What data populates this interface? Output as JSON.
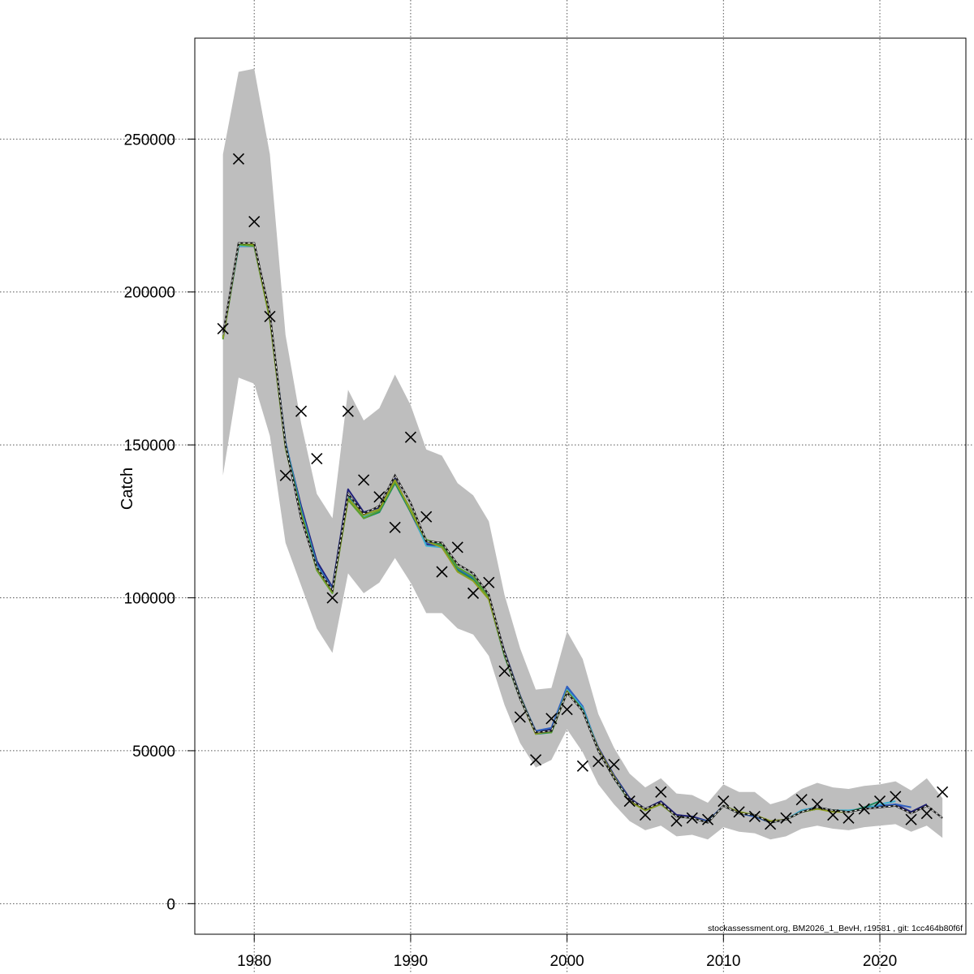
{
  "footer_text": "stockassessment.org, BM2026_1_BevH, r19581 , git: 1cc464b80f6f",
  "colors": {
    "band": "#bebebe",
    "observed_marker": "#000000",
    "estimate_line": "#1a1a1a",
    "retro_peels": [
      "#20207a",
      "#3060c0",
      "#40b0d0",
      "#1a8a60",
      "#5aa030",
      "#90a020"
    ]
  },
  "chart_data": {
    "type": "line",
    "title": "",
    "xlabel": "",
    "ylabel": "Catch",
    "xlim": [
      1976.2,
      2025.5
    ],
    "ylim": [
      -10000,
      283000
    ],
    "grid": true,
    "x_ticks": [
      1980,
      1990,
      2000,
      2010,
      2020
    ],
    "y_ticks": [
      0,
      50000,
      100000,
      150000,
      200000,
      250000
    ],
    "years": [
      1978,
      1979,
      1980,
      1981,
      1982,
      1983,
      1984,
      1985,
      1986,
      1987,
      1988,
      1989,
      1990,
      1991,
      1992,
      1993,
      1994,
      1995,
      1996,
      1997,
      1998,
      1999,
      2000,
      2001,
      2002,
      2003,
      2004,
      2005,
      2006,
      2007,
      2008,
      2009,
      2010,
      2011,
      2012,
      2013,
      2014,
      2015,
      2016,
      2017,
      2018,
      2019,
      2020,
      2021,
      2022,
      2023,
      2024
    ],
    "observed": [
      188000,
      243500,
      223000,
      192000,
      140000,
      161000,
      145500,
      100000,
      161000,
      138500,
      133000,
      123000,
      152500,
      126500,
      108500,
      116500,
      101500,
      105000,
      76000,
      61000,
      47000,
      60500,
      63500,
      45000,
      46500,
      45500,
      33500,
      29000,
      36500,
      27000,
      28000,
      27500,
      33500,
      30000,
      28500,
      26000,
      28000,
      34000,
      32500,
      29000,
      28000,
      31000,
      33500,
      35000,
      27500,
      29500,
      36500
    ],
    "estimate": [
      186000,
      216000,
      216000,
      193000,
      150000,
      126000,
      110000,
      102500,
      134000,
      127500,
      130000,
      140000,
      131000,
      118500,
      118000,
      111000,
      108000,
      101000,
      82000,
      67000,
      56000,
      56500,
      69000,
      63000,
      50000,
      41000,
      34000,
      31000,
      33000,
      28500,
      28000,
      26500,
      32000,
      29500,
      29000,
      26500,
      27500,
      30000,
      31500,
      30500,
      30000,
      31000,
      31500,
      32000,
      29500,
      32000,
      28000
    ],
    "lower": [
      140000,
      172000,
      170000,
      153000,
      118000,
      104000,
      90000,
      82000,
      108000,
      101500,
      105000,
      113000,
      105000,
      95000,
      95000,
      90000,
      88000,
      81000,
      65000,
      52500,
      44500,
      47000,
      57000,
      49500,
      39000,
      32500,
      27000,
      24000,
      25500,
      22000,
      22500,
      21000,
      25000,
      23500,
      23000,
      21000,
      22000,
      24500,
      25500,
      24500,
      24000,
      25000,
      25500,
      26000,
      23500,
      25500,
      21500
    ],
    "upper": [
      245000,
      272000,
      273000,
      245000,
      186000,
      157000,
      134000,
      126000,
      168000,
      158000,
      162000,
      173000,
      163000,
      148500,
      146500,
      137500,
      133500,
      125000,
      101000,
      83500,
      70000,
      70500,
      89000,
      80000,
      62000,
      51000,
      42500,
      38000,
      41000,
      36000,
      35500,
      33000,
      39000,
      36500,
      36500,
      32500,
      34000,
      37500,
      39500,
      38000,
      37500,
      38500,
      39000,
      40000,
      37000,
      41000,
      34500
    ],
    "series": [
      {
        "end_year": 2023,
        "values": [
          185000,
          215000,
          215000,
          191500,
          150500,
          130000,
          112000,
          103500,
          135500,
          128000,
          129500,
          139000,
          128000,
          117500,
          116500,
          109000,
          106000,
          100000,
          82500,
          68000,
          56000,
          57000,
          70500,
          63500,
          51000,
          42000,
          34500,
          31000,
          33500,
          29000,
          28500,
          27000,
          32000,
          29500,
          28500,
          27000,
          27500,
          30000,
          31000,
          30500,
          30000,
          31000,
          31500,
          32500,
          30000,
          32500
        ]
      },
      {
        "end_year": 2022,
        "values": [
          185500,
          215500,
          215500,
          192000,
          151000,
          129000,
          111000,
          103000,
          134000,
          127000,
          129000,
          138500,
          128500,
          118000,
          117000,
          109500,
          106500,
          100500,
          82000,
          67500,
          56500,
          57500,
          71000,
          64500,
          50500,
          41500,
          34000,
          31000,
          32500,
          28500,
          28000,
          27000,
          32000,
          29500,
          28500,
          26500,
          27500,
          30500,
          31500,
          30500,
          30000,
          31500,
          32000,
          32500,
          31500
        ]
      },
      {
        "end_year": 2021,
        "values": [
          185000,
          215000,
          215000,
          191500,
          150500,
          128500,
          110500,
          102500,
          133500,
          126500,
          128500,
          138000,
          128500,
          117000,
          116500,
          110000,
          107000,
          100000,
          81500,
          67000,
          56000,
          56500,
          70000,
          64000,
          50500,
          41500,
          34000,
          30500,
          32500,
          28500,
          28000,
          26500,
          32000,
          30000,
          29000,
          26500,
          27500,
          30500,
          31500,
          30500,
          30500,
          31000,
          32500,
          33500
        ]
      },
      {
        "end_year": 2020,
        "values": [
          185500,
          216000,
          215500,
          192000,
          150000,
          128000,
          110000,
          102000,
          133000,
          126000,
          128000,
          137500,
          128000,
          118500,
          117000,
          109000,
          106000,
          99500,
          81000,
          67000,
          55500,
          56000,
          69500,
          63500,
          50000,
          41000,
          33500,
          30500,
          32500,
          28500,
          28000,
          26500,
          32000,
          29500,
          29000,
          26500,
          27500,
          30000,
          31000,
          30500,
          30000,
          31500,
          33500
        ]
      },
      {
        "end_year": 2019,
        "values": [
          184500,
          215500,
          215000,
          191000,
          149000,
          127500,
          109000,
          101500,
          132000,
          126000,
          128500,
          138000,
          129000,
          119000,
          117500,
          110000,
          107000,
          100000,
          82000,
          67500,
          56000,
          56000,
          69000,
          63000,
          50000,
          41000,
          34000,
          30500,
          32500,
          28500,
          28000,
          26500,
          32000,
          29500,
          29000,
          26500,
          27500,
          30000,
          31000,
          30500,
          30000,
          31000
        ]
      },
      {
        "end_year": 2018,
        "values": [
          185000,
          216000,
          215500,
          191500,
          149500,
          127000,
          109500,
          102000,
          132500,
          127000,
          129000,
          138500,
          128500,
          118500,
          116500,
          108500,
          105500,
          99500,
          81500,
          67000,
          55500,
          56500,
          69500,
          63000,
          50500,
          41500,
          33500,
          30500,
          32500,
          28500,
          28000,
          26500,
          32000,
          30000,
          29000,
          27000,
          27500,
          30000,
          31000,
          30000,
          30000
        ]
      }
    ]
  }
}
